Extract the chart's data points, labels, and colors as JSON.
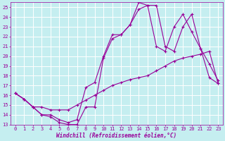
{
  "xlabel": "Windchill (Refroidissement éolien,°C)",
  "bg_color": "#c5eef0",
  "grid_color": "#ffffff",
  "line_color": "#990099",
  "xlim": [
    -0.5,
    23.5
  ],
  "ylim": [
    13,
    25.5
  ],
  "xticks": [
    0,
    1,
    2,
    3,
    4,
    5,
    6,
    7,
    8,
    9,
    10,
    11,
    12,
    13,
    14,
    15,
    16,
    17,
    18,
    19,
    20,
    21,
    22,
    23
  ],
  "yticks": [
    13,
    14,
    15,
    16,
    17,
    18,
    19,
    20,
    21,
    22,
    23,
    24,
    25
  ],
  "line1_x": [
    0,
    1,
    2,
    3,
    4,
    5,
    6,
    7,
    8,
    9,
    10,
    11,
    12,
    13,
    14,
    15,
    16,
    17,
    18,
    19,
    20,
    21,
    22,
    23
  ],
  "line1_y": [
    16.2,
    15.6,
    14.8,
    14.0,
    13.8,
    13.2,
    13.0,
    13.0,
    14.8,
    14.8,
    19.8,
    21.8,
    22.2,
    23.2,
    24.8,
    25.2,
    25.2,
    21.0,
    20.5,
    23.0,
    24.3,
    20.8,
    19.2,
    17.5
  ],
  "line2_x": [
    0,
    1,
    2,
    3,
    4,
    5,
    6,
    7,
    8,
    9,
    10,
    11,
    12,
    13,
    14,
    15,
    16,
    17,
    18,
    19,
    20,
    21,
    22,
    23
  ],
  "line2_y": [
    16.2,
    15.6,
    14.8,
    14.0,
    14.0,
    13.5,
    13.2,
    13.5,
    16.8,
    17.3,
    20.0,
    22.2,
    22.2,
    23.2,
    25.5,
    25.2,
    21.0,
    20.5,
    23.0,
    24.3,
    22.5,
    20.8,
    17.8,
    17.2
  ],
  "line3_x": [
    0,
    1,
    2,
    3,
    4,
    5,
    6,
    7,
    8,
    9,
    10,
    11,
    12,
    13,
    14,
    15,
    16,
    17,
    18,
    19,
    20,
    21,
    22,
    23
  ],
  "line3_y": [
    16.2,
    15.6,
    14.8,
    14.8,
    14.5,
    14.5,
    14.5,
    15.0,
    15.5,
    16.0,
    16.5,
    17.0,
    17.3,
    17.6,
    17.8,
    18.0,
    18.5,
    19.0,
    19.5,
    19.8,
    20.0,
    20.2,
    20.5,
    17.2
  ],
  "marker": "+",
  "markersize": 3,
  "linewidth": 0.8,
  "xlabel_fontsize": 5.5,
  "tick_fontsize": 5
}
